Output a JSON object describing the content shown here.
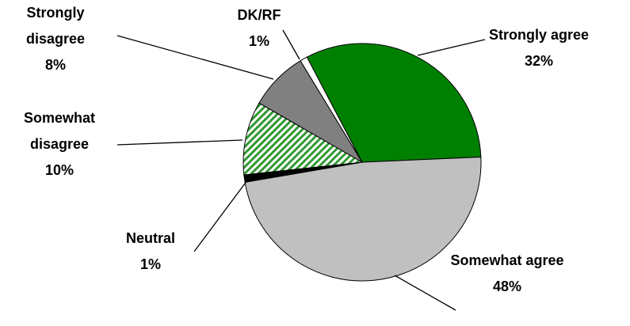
{
  "chart_data": {
    "type": "pie",
    "categories": [
      "Strongly agree",
      "Somewhat agree",
      "Neutral",
      "Somewhat disagree",
      "Strongly disagree",
      "DK/RF"
    ],
    "values": [
      32,
      48,
      1,
      10,
      8,
      1
    ],
    "value_labels": [
      "32%",
      "48%",
      "1%",
      "10%",
      "8%",
      "1%"
    ],
    "colors": [
      "#008000",
      "#c0c0c0",
      "#000000",
      "#339933",
      "#808080",
      "#ffffff"
    ],
    "hatch": [
      false,
      false,
      false,
      true,
      false,
      false
    ]
  }
}
